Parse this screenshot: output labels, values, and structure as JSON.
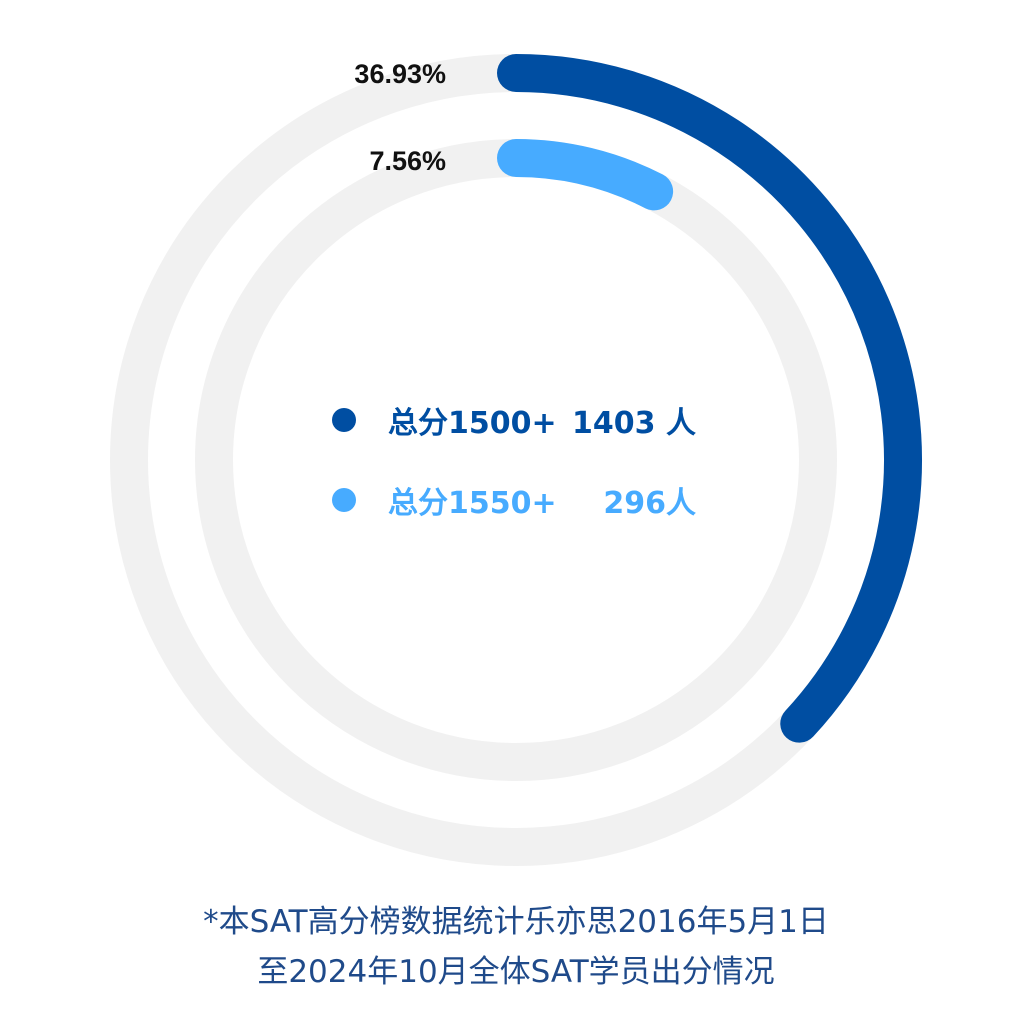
{
  "chart_data": {
    "type": "radial-bar",
    "series": [
      {
        "label": "总分1500+",
        "count": "1403 人",
        "percent_label": "36.93%",
        "value": 36.93,
        "color": "#004EA2"
      },
      {
        "label": "总分1550+",
        "count": "296人",
        "percent_label": "7.56%",
        "value": 7.56,
        "color": "#47ABFF"
      }
    ],
    "track_color": "#F1F1F1",
    "max": 100
  },
  "footnote": {
    "line1": "*本SAT高分榜数据统计乐亦思2016年5月1日",
    "line2": "至2024年10月全体SAT学员出分情况",
    "color": "#1F4A8A"
  }
}
